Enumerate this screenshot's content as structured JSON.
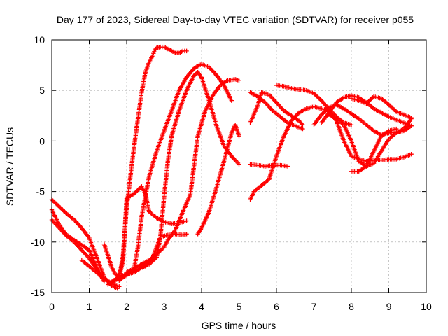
{
  "chart_data": {
    "type": "scatter",
    "title": "Day 177 of 2023, Sidereal Day-to-day VTEC variation (SDTVAR) for receiver p055",
    "xlabel": "GPS time / hours",
    "ylabel": "SDTVAR / TECUs",
    "xlim": [
      0,
      10
    ],
    "ylim": [
      -15,
      10
    ],
    "xticks": [
      0,
      1,
      2,
      3,
      4,
      5,
      6,
      7,
      8,
      9,
      10
    ],
    "yticks": [
      -15,
      -10,
      -5,
      0,
      5,
      10
    ],
    "grid": true,
    "marker": "plus",
    "color": "#ff0000",
    "series": [
      {
        "x": [
          0.0,
          0.2,
          0.4,
          0.6,
          0.8,
          1.0,
          1.2,
          1.4,
          1.6,
          1.75
        ],
        "y": [
          -5.8,
          -6.5,
          -7.2,
          -7.8,
          -8.6,
          -9.6,
          -11.5,
          -13.5,
          -14.3,
          -14.6
        ]
      },
      {
        "x": [
          0.0,
          0.2,
          0.4,
          0.6,
          0.8,
          1.0,
          1.2,
          1.4
        ],
        "y": [
          -6.8,
          -8.3,
          -9.3,
          -9.8,
          -10.3,
          -10.8,
          -12.5,
          -13.9
        ]
      },
      {
        "x": [
          0.0,
          0.2,
          0.4,
          0.6,
          0.8,
          1.0,
          1.2,
          1.3
        ],
        "y": [
          -7.8,
          -8.6,
          -9.4,
          -10.0,
          -10.8,
          -11.6,
          -12.7,
          -13.4
        ]
      },
      {
        "x": [
          0.8,
          1.0,
          1.2,
          1.4,
          1.6,
          1.8
        ],
        "y": [
          -11.8,
          -12.4,
          -13.0,
          -13.6,
          -14.1,
          -14.4
        ]
      },
      {
        "x": [
          1.4,
          1.6,
          1.7,
          1.8,
          1.9,
          2.0,
          2.1,
          2.2,
          2.3,
          2.4,
          2.5,
          2.6,
          2.7,
          2.75,
          2.8,
          2.9,
          3.0,
          3.1,
          3.2,
          3.3,
          3.4,
          3.5,
          3.6
        ],
        "y": [
          -10.2,
          -12.5,
          -13.2,
          -13.4,
          -11.5,
          -6.5,
          -3.5,
          -0.5,
          2.2,
          4.8,
          6.8,
          7.8,
          8.5,
          9.0,
          9.2,
          9.3,
          9.3,
          9.1,
          8.9,
          8.7,
          8.7,
          8.9,
          8.9
        ]
      },
      {
        "x": [
          1.55,
          1.7,
          1.8,
          1.9,
          2.0,
          2.2,
          2.4,
          2.5,
          2.6,
          2.8,
          3.0,
          3.2,
          3.4,
          3.6
        ],
        "y": [
          -14.0,
          -13.7,
          -13.3,
          -12.0,
          -5.7,
          -5.2,
          -4.5,
          -5.2,
          -7.0,
          -7.6,
          -8.0,
          -8.2,
          -8.1,
          -7.9
        ]
      },
      {
        "x": [
          1.5,
          1.7,
          1.9,
          2.1,
          2.3,
          2.5,
          2.7,
          2.9,
          3.1,
          3.3,
          3.5,
          3.6
        ],
        "y": [
          -14.2,
          -13.8,
          -13.3,
          -13.0,
          -12.7,
          -12.4,
          -11.5,
          -9.5,
          -9.3,
          -9.2,
          -9.3,
          -9.2
        ]
      },
      {
        "x": [
          1.8,
          2.0,
          2.2,
          2.4,
          2.6,
          2.8,
          2.9,
          3.0,
          3.1,
          3.2,
          3.4,
          3.6,
          3.8,
          3.9,
          4.0,
          4.2,
          4.4,
          4.6,
          4.8,
          5.0
        ],
        "y": [
          -13.8,
          -13.2,
          -13.0,
          -12.5,
          -12.2,
          -11.5,
          -9.5,
          -5.5,
          -2.0,
          0.5,
          3.0,
          5.0,
          6.5,
          6.8,
          6.3,
          4.0,
          1.5,
          -0.5,
          -1.5,
          -2.3
        ]
      },
      {
        "x": [
          1.8,
          2.0,
          2.2,
          2.3,
          2.4,
          2.6,
          2.8,
          3.0,
          3.2,
          3.4,
          3.6,
          3.8,
          4.0,
          4.2,
          4.4,
          4.6,
          4.8
        ],
        "y": [
          -13.6,
          -13.3,
          -12.6,
          -10.5,
          -7.5,
          -3.5,
          -1.0,
          1.0,
          3.0,
          5.0,
          6.3,
          7.2,
          7.6,
          7.3,
          6.5,
          5.5,
          4.0
        ]
      },
      {
        "x": [
          2.0,
          2.2,
          2.4,
          2.6,
          2.8,
          3.0,
          3.1,
          3.3,
          3.5,
          3.7,
          3.9,
          4.1,
          4.3,
          4.5,
          4.7,
          4.9,
          5.0
        ],
        "y": [
          -13.0,
          -12.6,
          -12.2,
          -11.8,
          -11.2,
          -10.5,
          -9.8,
          -8.8,
          -7.0,
          -5.3,
          0.5,
          3.0,
          4.5,
          5.5,
          6.0,
          6.1,
          6.0
        ]
      },
      {
        "x": [
          3.9,
          4.0,
          4.2,
          4.4,
          4.6,
          4.8,
          4.9,
          5.0
        ],
        "y": [
          -9.2,
          -8.6,
          -7.0,
          -4.6,
          -2.0,
          0.8,
          1.6,
          0.5
        ]
      },
      {
        "x": [
          5.3,
          5.4,
          5.6,
          5.8,
          6.0,
          6.2,
          6.4,
          6.6,
          6.8,
          7.0,
          7.2,
          7.4,
          7.6,
          7.8,
          8.0,
          8.2,
          8.4,
          8.6,
          8.8,
          9.0,
          9.2,
          9.4,
          9.6
        ],
        "y": [
          -5.8,
          -5.0,
          -4.4,
          -3.8,
          -1.5,
          0.5,
          2.0,
          2.8,
          3.2,
          3.4,
          3.2,
          3.0,
          2.0,
          0.0,
          -1.5,
          -1.8,
          -2.0,
          -1.9,
          -1.9,
          -1.8,
          -1.8,
          -1.6,
          -1.3
        ]
      },
      {
        "x": [
          5.3,
          5.5,
          5.7,
          5.9,
          6.1,
          6.3
        ],
        "y": [
          -2.3,
          -2.4,
          -2.5,
          -2.4,
          -2.4,
          -2.5
        ]
      },
      {
        "x": [
          5.3,
          5.5,
          5.6,
          5.8,
          6.0,
          6.2,
          6.4,
          6.6,
          6.7
        ],
        "y": [
          1.8,
          3.5,
          4.8,
          4.6,
          3.8,
          3.0,
          2.5,
          2.0,
          1.6
        ]
      },
      {
        "x": [
          5.3,
          5.5,
          5.7,
          5.9,
          6.1,
          6.3,
          6.5,
          6.7
        ],
        "y": [
          4.8,
          4.4,
          3.8,
          3.0,
          2.4,
          1.8,
          1.5,
          1.2
        ]
      },
      {
        "x": [
          6.0,
          6.2,
          6.4,
          6.6,
          6.8,
          7.0,
          7.2,
          7.4,
          7.6,
          7.8,
          8.0
        ],
        "y": [
          5.5,
          5.4,
          5.2,
          5.1,
          5.0,
          4.7,
          4.0,
          3.2,
          2.4,
          1.8,
          1.6
        ]
      },
      {
        "x": [
          7.0,
          7.2,
          7.4,
          7.6,
          7.8,
          8.0,
          8.2,
          8.4,
          8.6,
          8.8,
          9.0,
          9.2,
          9.4,
          9.6
        ],
        "y": [
          1.6,
          2.6,
          3.3,
          3.6,
          3.2,
          2.7,
          2.2,
          1.6,
          1.0,
          0.6,
          0.8,
          0.9,
          1.0,
          1.5
        ]
      },
      {
        "x": [
          7.2,
          7.4,
          7.6,
          7.8,
          8.0,
          8.2,
          8.4,
          8.6,
          8.8,
          9.0,
          9.2,
          9.4,
          9.6
        ],
        "y": [
          1.8,
          2.8,
          3.8,
          4.3,
          4.5,
          4.3,
          3.8,
          3.2,
          2.8,
          2.4,
          2.1,
          1.8,
          1.5
        ]
      },
      {
        "x": [
          7.4,
          7.6,
          7.8,
          8.0,
          8.2,
          8.4,
          8.6,
          8.8,
          9.0,
          9.2,
          9.4,
          9.6
        ],
        "y": [
          2.6,
          2.2,
          1.6,
          0.0,
          -2.0,
          -2.5,
          -2.2,
          -1.0,
          0.2,
          0.8,
          1.2,
          2.2
        ]
      },
      {
        "x": [
          8.0,
          8.2,
          8.4,
          8.6,
          8.8,
          9.0,
          9.2,
          9.4,
          9.6
        ],
        "y": [
          4.2,
          4.0,
          3.7,
          4.4,
          4.2,
          3.6,
          2.9,
          2.6,
          2.3
        ]
      },
      {
        "x": [
          8.0,
          8.2,
          8.4,
          8.6,
          8.8,
          9.0,
          9.2
        ],
        "y": [
          -3.0,
          -3.0,
          -2.5,
          -1.0,
          0.5,
          1.0,
          1.2
        ]
      }
    ]
  }
}
